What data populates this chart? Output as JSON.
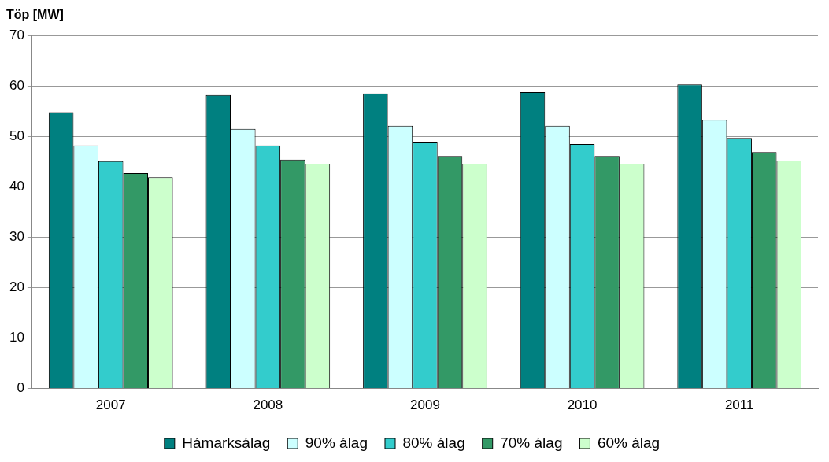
{
  "chart_data": {
    "type": "bar",
    "ylabel": "Töp [MW]",
    "categories": [
      "2007",
      "2008",
      "2009",
      "2010",
      "2011"
    ],
    "series": [
      {
        "name": "Hámarksálag",
        "color": "#008080",
        "values": [
          54.8,
          58.2,
          58.5,
          58.8,
          60.3
        ]
      },
      {
        "name": "90% álag",
        "color": "#ccffff",
        "values": [
          48.2,
          51.5,
          52.1,
          52.1,
          53.3
        ]
      },
      {
        "name": "80% álag",
        "color": "#33cccc",
        "values": [
          45.1,
          48.2,
          48.8,
          48.5,
          49.7
        ]
      },
      {
        "name": "70% álag",
        "color": "#339966",
        "values": [
          42.7,
          45.4,
          46.1,
          46.1,
          46.9
        ]
      },
      {
        "name": "60% álag",
        "color": "#ccffcc",
        "values": [
          41.9,
          44.6,
          44.6,
          44.6,
          45.2
        ]
      }
    ],
    "ylim": [
      0,
      70
    ],
    "yticks": [
      0,
      10,
      20,
      30,
      40,
      50,
      60,
      70
    ],
    "grid": "y",
    "legend": "bottom"
  }
}
